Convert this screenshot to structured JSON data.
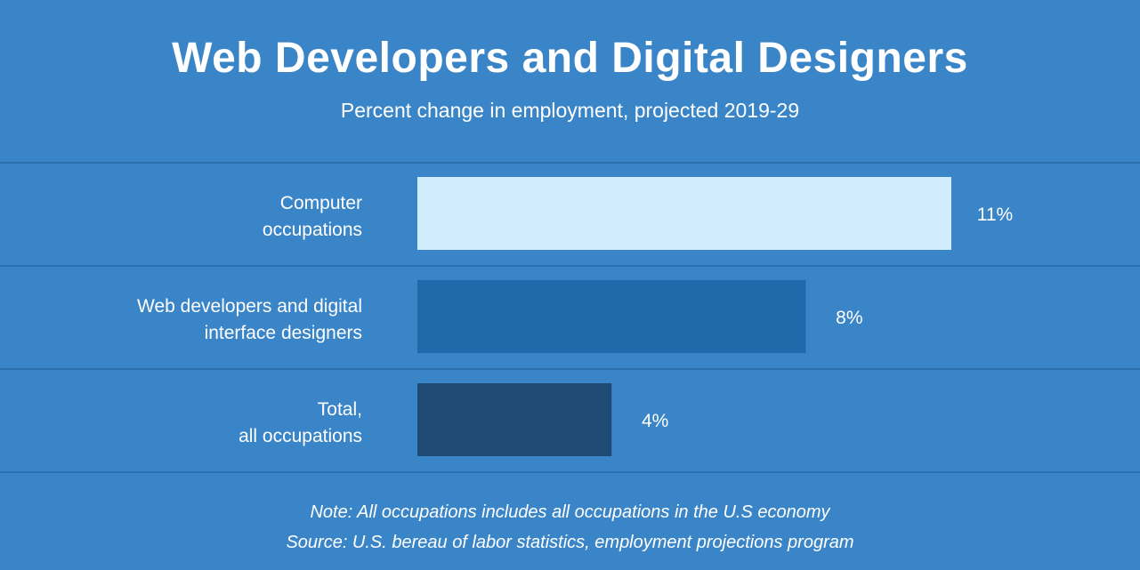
{
  "chart_data": {
    "type": "bar",
    "orientation": "horizontal",
    "title": "Web Developers and Digital Designers",
    "subtitle": "Percent change in employment, projected 2019-29",
    "categories": [
      [
        "Computer",
        "occupations"
      ],
      [
        "Web developers and digital",
        "interface designers"
      ],
      [
        "Total,",
        "all occupations"
      ]
    ],
    "values": [
      11,
      8,
      4
    ],
    "value_labels": [
      "11%",
      "8%",
      "4%"
    ],
    "bar_colors": [
      "#d1ecfd",
      "#1f69a9",
      "#1e4a73"
    ],
    "xlim": [
      0,
      11
    ],
    "xlabel": "",
    "ylabel": "",
    "grid": false,
    "legend": "none"
  },
  "colors": {
    "background": "#3a85c8",
    "divider": "#2a6fae",
    "text": "#ffffff"
  },
  "footer": {
    "note": "Note: All occupations includes all occupations in the U.S economy",
    "source": "Source: U.S. bereau of labor statistics, employment projections program"
  }
}
